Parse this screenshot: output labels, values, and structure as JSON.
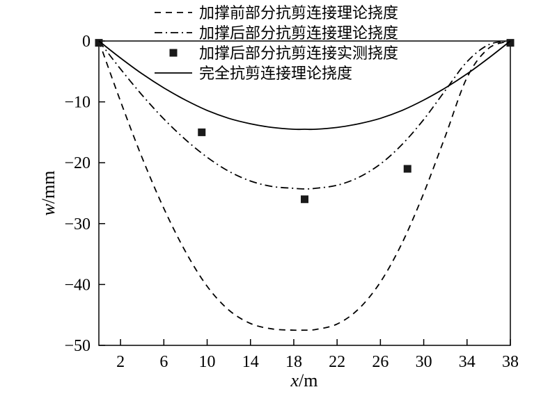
{
  "chart_data": {
    "type": "line",
    "title": "",
    "xlabel": {
      "var": "x",
      "unit": "/m"
    },
    "ylabel": {
      "var": "w",
      "unit": "/mm"
    },
    "xlim": [
      0,
      38
    ],
    "ylim": [
      -50,
      0
    ],
    "x_ticks": [
      2,
      6,
      10,
      14,
      18,
      22,
      26,
      30,
      34,
      38
    ],
    "y_ticks": [
      0,
      -10,
      -20,
      -30,
      -40,
      -50
    ],
    "y_tick_labels": [
      "0",
      "−10",
      "−20",
      "−30",
      "−40",
      "−50"
    ],
    "grid": false,
    "legend_position": "top",
    "series": [
      {
        "name": "加撑前部分抗剪连接理论挠度",
        "style": "dashed",
        "x": [
          0,
          2,
          4,
          6,
          8,
          10,
          12,
          14,
          16,
          18,
          19,
          20,
          22,
          24,
          26,
          28,
          30,
          32,
          34,
          36,
          38
        ],
        "values": [
          0,
          -9.9,
          -19.2,
          -27.5,
          -34.6,
          -40.3,
          -44.2,
          -46.4,
          -47.3,
          -47.5,
          -47.5,
          -47.4,
          -46.5,
          -44.0,
          -39.6,
          -33.2,
          -25.0,
          -15.6,
          -6.0,
          -1.2,
          0
        ]
      },
      {
        "name": "加撑后部分抗剪连接理论挠度",
        "style": "dashdot",
        "x": [
          0,
          2,
          4,
          6,
          8,
          10,
          12,
          14,
          16,
          18,
          19,
          20,
          22,
          24,
          26,
          28,
          30,
          32,
          34,
          36,
          38
        ],
        "values": [
          0,
          -4.6,
          -8.9,
          -12.8,
          -16.2,
          -19.1,
          -21.4,
          -23.0,
          -23.9,
          -24.2,
          -24.3,
          -24.2,
          -23.7,
          -22.4,
          -20.2,
          -17.0,
          -12.9,
          -8.1,
          -3.4,
          -0.6,
          0
        ]
      },
      {
        "name": "加撑后部分抗剪连接实测挠度",
        "style": "markers",
        "x": [
          0,
          9.5,
          19,
          28.5,
          38
        ],
        "values": [
          -0.3,
          -15,
          -26,
          -21,
          -0.3
        ]
      },
      {
        "name": "完全抗剪连接理论挠度",
        "style": "solid",
        "x": [
          0,
          2,
          4,
          6,
          8,
          10,
          12,
          14,
          16,
          18,
          19,
          20,
          22,
          24,
          26,
          28,
          30,
          32,
          34,
          36,
          38
        ],
        "values": [
          0,
          -2.8,
          -5.4,
          -7.7,
          -9.7,
          -11.4,
          -12.7,
          -13.6,
          -14.2,
          -14.5,
          -14.5,
          -14.5,
          -14.2,
          -13.6,
          -12.7,
          -11.4,
          -9.7,
          -7.7,
          -5.4,
          -2.8,
          0
        ]
      }
    ]
  }
}
